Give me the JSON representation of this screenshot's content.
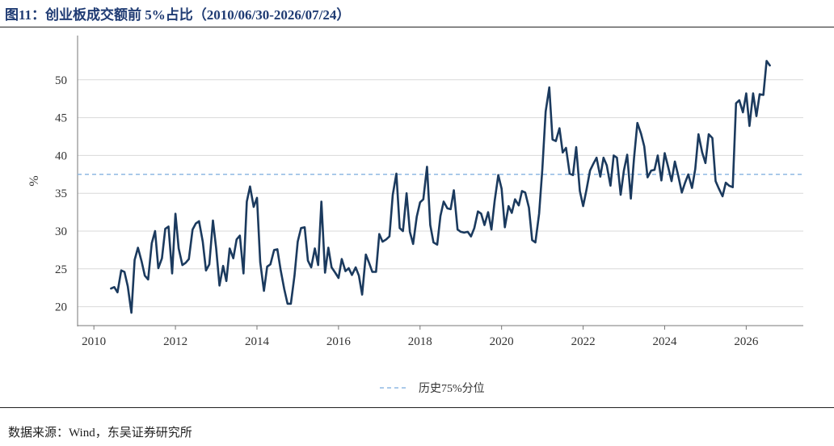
{
  "header": {
    "title": "图11：创业板成交额前 5%占比（2010/06/30-2026/07/24）"
  },
  "footer": {
    "source": "数据来源：Wind，东吴证券研究所"
  },
  "colors": {
    "series": "#1b3a5e",
    "reference": "#8fb8e3",
    "title": "#1f3b73"
  },
  "chart_data": {
    "type": "line",
    "ylabel": "%",
    "xlim": [
      2009.6,
      2027.4
    ],
    "ylim": [
      17.5,
      55
    ],
    "yticks": [
      20,
      25,
      30,
      35,
      40,
      45,
      50
    ],
    "xticks": [
      2010,
      2012,
      2014,
      2016,
      2018,
      2020,
      2022,
      2024,
      2026
    ],
    "grid": "horizontal",
    "legend_position": "bottom-center",
    "reference_line": {
      "name": "历史75%分位",
      "value": 37.5,
      "style": "dashed"
    },
    "series": [
      {
        "x": [
          2010.42,
          2010.5,
          2010.58,
          2010.67,
          2010.75,
          2010.83,
          2010.92,
          2011.0,
          2011.08,
          2011.17,
          2011.25,
          2011.33,
          2011.42,
          2011.5,
          2011.58,
          2011.67,
          2011.75,
          2011.83,
          2011.92,
          2012.0,
          2012.08,
          2012.17,
          2012.25,
          2012.33,
          2012.42,
          2012.5,
          2012.58,
          2012.67,
          2012.75,
          2012.83,
          2012.92,
          2013.0,
          2013.08,
          2013.17,
          2013.25,
          2013.33,
          2013.42,
          2013.5,
          2013.58,
          2013.67,
          2013.75,
          2013.83,
          2013.92,
          2014.0,
          2014.08,
          2014.17,
          2014.25,
          2014.33,
          2014.42,
          2014.5,
          2014.58,
          2014.67,
          2014.75,
          2014.83,
          2014.92,
          2015.0,
          2015.08,
          2015.17,
          2015.25,
          2015.33,
          2015.42,
          2015.5,
          2015.58,
          2015.67,
          2015.75,
          2015.83,
          2015.92,
          2016.0,
          2016.08,
          2016.17,
          2016.25,
          2016.33,
          2016.42,
          2016.5,
          2016.58,
          2016.67,
          2016.75,
          2016.83,
          2016.92,
          2017.0,
          2017.08,
          2017.17,
          2017.25,
          2017.33,
          2017.42,
          2017.5,
          2017.58,
          2017.67,
          2017.75,
          2017.83,
          2017.92,
          2018.0,
          2018.08,
          2018.17,
          2018.25,
          2018.33,
          2018.42,
          2018.5,
          2018.58,
          2018.67,
          2018.75,
          2018.83,
          2018.92,
          2019.0,
          2019.08,
          2019.17,
          2019.25,
          2019.33,
          2019.42,
          2019.5,
          2019.58,
          2019.67,
          2019.75,
          2019.83,
          2019.92,
          2020.0,
          2020.08,
          2020.17,
          2020.25,
          2020.33,
          2020.42,
          2020.5,
          2020.58,
          2020.67,
          2020.75,
          2020.83,
          2020.92,
          2021.0,
          2021.08,
          2021.17,
          2021.25,
          2021.33,
          2021.42,
          2021.5,
          2021.58,
          2021.67,
          2021.75,
          2021.83,
          2021.92,
          2022.0,
          2022.08,
          2022.17,
          2022.25,
          2022.33,
          2022.42,
          2022.5,
          2022.58,
          2022.67,
          2022.75,
          2022.83,
          2022.92,
          2023.0,
          2023.08,
          2023.17,
          2023.25,
          2023.33,
          2023.42,
          2023.5,
          2023.58,
          2023.67,
          2023.75,
          2023.83,
          2023.92,
          2024.0,
          2024.08,
          2024.17,
          2024.25,
          2024.33,
          2024.42,
          2024.5,
          2024.58,
          2024.67,
          2024.75,
          2024.83,
          2024.92,
          2025.0,
          2025.08,
          2025.17,
          2025.25,
          2025.33,
          2025.42,
          2025.5,
          2025.58,
          2025.67,
          2025.75,
          2025.83,
          2025.92,
          2026.0,
          2026.08,
          2026.17,
          2026.25,
          2026.33,
          2026.42,
          2026.5,
          2026.58
        ],
        "values": [
          22.4,
          22.6,
          21.9,
          24.8,
          24.6,
          22.7,
          19.2,
          26.2,
          27.8,
          26.0,
          24.1,
          23.6,
          28.4,
          30.0,
          25.1,
          26.4,
          30.3,
          30.6,
          24.4,
          32.3,
          27.7,
          25.5,
          25.8,
          26.3,
          30.2,
          31.0,
          31.3,
          28.6,
          24.8,
          25.6,
          31.4,
          27.7,
          22.8,
          25.4,
          23.4,
          27.7,
          26.4,
          28.9,
          29.4,
          24.4,
          33.9,
          35.9,
          33.2,
          34.4,
          25.9,
          22.1,
          25.3,
          25.6,
          27.5,
          27.6,
          24.9,
          22.3,
          20.4,
          20.4,
          24.1,
          28.6,
          30.4,
          30.5,
          26.1,
          25.2,
          27.7,
          25.5,
          33.9,
          24.5,
          27.8,
          25.2,
          24.5,
          23.8,
          26.3,
          24.7,
          25.1,
          24.2,
          25.2,
          24.1,
          21.6,
          26.9,
          25.8,
          24.6,
          24.6,
          29.6,
          28.6,
          28.9,
          29.3,
          34.8,
          37.6,
          30.4,
          30.0,
          35.0,
          29.9,
          28.3,
          31.9,
          33.8,
          34.2,
          38.5,
          30.8,
          28.5,
          28.2,
          32.0,
          33.9,
          33.0,
          32.9,
          35.4,
          30.2,
          29.9,
          29.8,
          29.9,
          29.3,
          30.4,
          32.6,
          32.3,
          30.8,
          32.5,
          30.2,
          34.0,
          37.4,
          35.6,
          30.5,
          33.3,
          32.4,
          34.2,
          33.4,
          35.3,
          35.1,
          33.1,
          28.8,
          28.5,
          32.3,
          38.2,
          45.8,
          49.0,
          42.1,
          41.9,
          43.6,
          40.4,
          41.0,
          37.6,
          37.4,
          41.1,
          35.3,
          33.3,
          35.4,
          38.0,
          38.9,
          39.7,
          37.2,
          39.7,
          38.7,
          36.0,
          40.0,
          39.7,
          34.8,
          38.0,
          40.1,
          34.3,
          39.7,
          44.3,
          42.9,
          41.2,
          37.1,
          38.0,
          38.1,
          40.0,
          36.7,
          40.3,
          38.6,
          36.6,
          39.2,
          37.4,
          35.1,
          36.4,
          37.5,
          35.7,
          38.2,
          42.8,
          40.4,
          39.0,
          42.8,
          42.3,
          36.6,
          35.6,
          34.6,
          36.4,
          36.0,
          35.8,
          46.9,
          47.3,
          45.7,
          48.2,
          43.9,
          48.2,
          45.2,
          48.1,
          48.0,
          52.5,
          51.9
        ]
      }
    ]
  }
}
